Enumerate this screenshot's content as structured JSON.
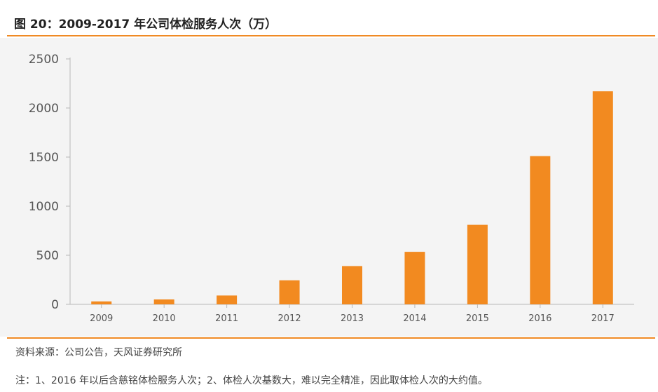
{
  "header": {
    "title": "图 20：2009-2017 年公司体检服务人次（万）"
  },
  "chart_data": {
    "type": "bar",
    "categories": [
      "2009",
      "2010",
      "2011",
      "2012",
      "2013",
      "2014",
      "2015",
      "2016",
      "2017"
    ],
    "values": [
      30,
      50,
      90,
      245,
      390,
      535,
      810,
      1510,
      2170
    ],
    "ylim": [
      0,
      2500
    ],
    "yticks": [
      "0",
      "500",
      "1000",
      "1500",
      "2000",
      "2500"
    ],
    "bar_color": "#f28a20",
    "grid": false,
    "legend": false
  },
  "footer": {
    "source": "资料来源：公司公告，天风证券研究所",
    "note": "注：1、2016 年以后含慈铭体检服务人次；2、体检人次基数大，难以完全精准，因此取体检人次的大约值。"
  },
  "colors": {
    "accent_rule": "#f08a24",
    "chart_background": "#f4f4f4"
  }
}
